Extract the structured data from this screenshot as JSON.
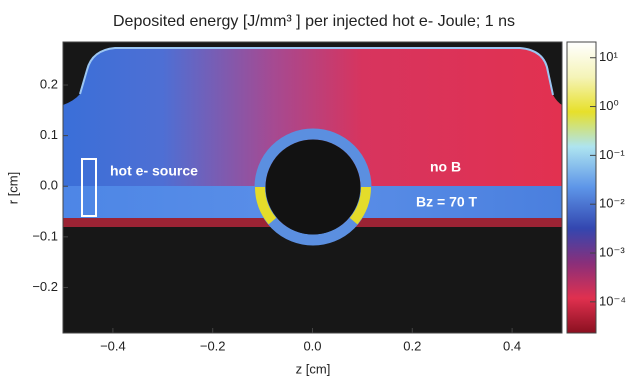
{
  "chart_data": {
    "type": "heatmap",
    "title": "Deposited energy [J/mm³ ] per injected hot e- Joule;   1 ns",
    "xlabel": "z  [cm]",
    "ylabel": "r  [cm]",
    "xlim": [
      -0.5,
      0.5
    ],
    "ylim": [
      -0.29,
      0.285
    ],
    "xticks": [
      {
        "value": -0.4,
        "label": "−0.4"
      },
      {
        "value": -0.2,
        "label": "−0.2"
      },
      {
        "value": 0,
        "label": "0.0"
      },
      0.2,
      0.4
    ],
    "yticks": [
      {
        "value": -0.2,
        "label": "−0.2"
      },
      {
        "value": -0.1,
        "label": "−0.1"
      },
      {
        "value": 0,
        "label": "0.0"
      },
      0.1,
      0.2
    ],
    "annotations": [
      "hot e- source",
      "no B",
      "Bz = 70 T"
    ],
    "colorbar": {
      "log": true,
      "lim": [
        2.3e-05,
        21
      ],
      "ticks": [
        {
          "value": 10,
          "label": "10¹"
        },
        {
          "value": 1,
          "label": "10⁰"
        },
        {
          "value": 0.1,
          "label": "10⁻¹"
        },
        {
          "value": 0.01,
          "label": "10⁻²"
        },
        {
          "value": 0.001,
          "label": "10⁻³"
        },
        {
          "value": 0.0001,
          "label": "10⁻⁴"
        }
      ]
    }
  }
}
